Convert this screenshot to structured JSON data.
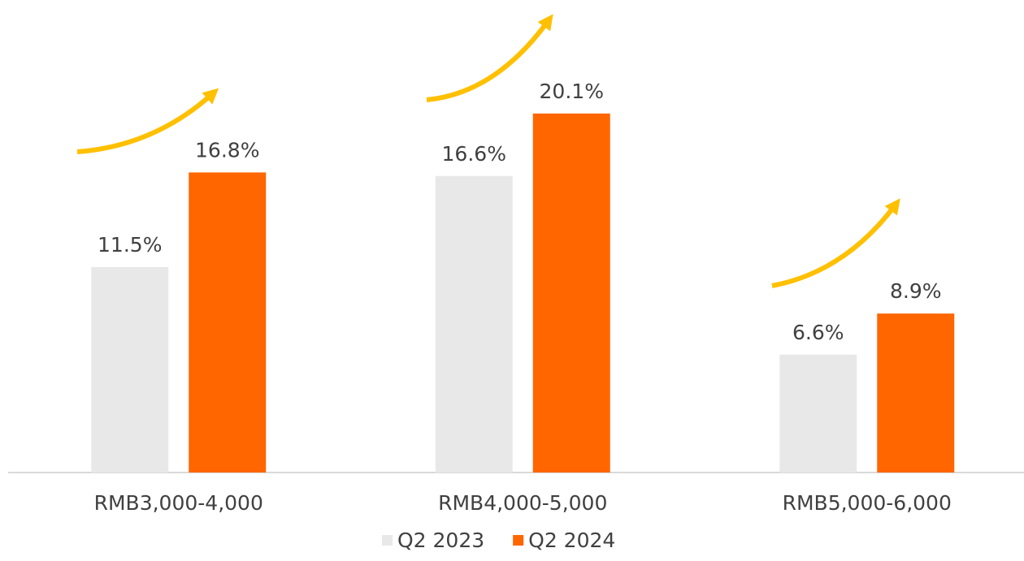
{
  "chart_data": {
    "type": "bar",
    "categories": [
      "RMB3,000-4,000",
      "RMB4,000-5,000",
      "RMB5,000-6,000"
    ],
    "series": [
      {
        "name": "Q2 2023",
        "color": "#e8e8e8",
        "values": [
          11.5,
          16.6,
          6.6
        ],
        "value_labels": [
          "11.5%",
          "16.6%",
          "6.6%"
        ]
      },
      {
        "name": "Q2 2024",
        "color": "#ff6600",
        "values": [
          16.8,
          20.1,
          8.9
        ],
        "value_labels": [
          "16.8%",
          "20.1%",
          "8.9%"
        ]
      }
    ],
    "legend": "bottom"
  }
}
